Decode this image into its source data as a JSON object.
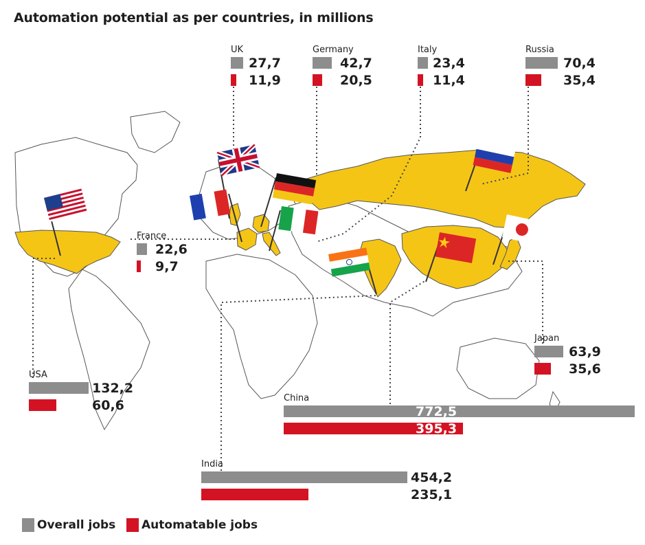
{
  "title": "Automation potential as per countries, in millions",
  "colors": {
    "overall": "#8d8d8d",
    "automatable": "#d31324",
    "highlight": "#f5c516"
  },
  "chart_data": {
    "type": "bar",
    "title": "Automation potential as per countries, in millions",
    "categories": [
      "UK",
      "Germany",
      "Italy",
      "Russia",
      "France",
      "USA",
      "Japan",
      "China",
      "India"
    ],
    "series": [
      {
        "name": "Overall jobs",
        "values": [
          27.7,
          42.7,
          23.4,
          70.4,
          22.6,
          132.2,
          63.9,
          772.5,
          454.2
        ]
      },
      {
        "name": "Automatable jobs",
        "values": [
          11.9,
          20.5,
          11.4,
          35.4,
          9.7,
          60.6,
          35.6,
          395.3,
          235.1
        ]
      }
    ],
    "value_labels": {
      "overall": [
        "27,7",
        "42,7",
        "23,4",
        "70,4",
        "22,6",
        "132,2",
        "63,9",
        "772,5",
        "454,2"
      ],
      "automatable": [
        "11,9",
        "20,5",
        "11,4",
        "35,4",
        "9,7",
        "60,6",
        "35,6",
        "395,3",
        "235,1"
      ]
    },
    "legend": {
      "position": "bottom-left",
      "items": [
        "Overall jobs",
        "Automatable jobs"
      ]
    }
  },
  "flags": [
    "usa-flag",
    "uk-flag",
    "france-flag",
    "germany-flag",
    "italy-flag",
    "india-flag",
    "russia-flag",
    "china-flag",
    "japan-flag"
  ]
}
